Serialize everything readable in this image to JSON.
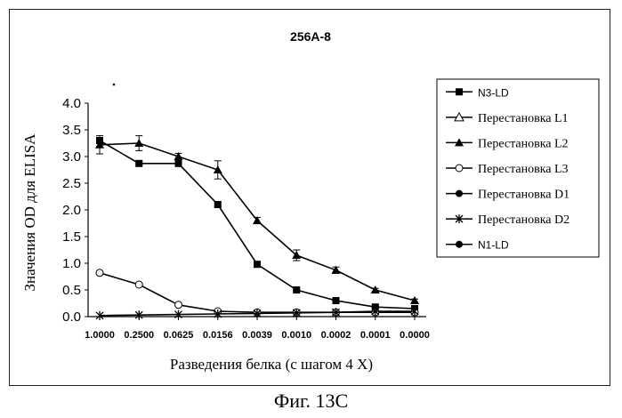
{
  "chart_data": {
    "type": "line",
    "title": "256A-8",
    "xlabel": "Разведения белка (с шагом 4 X)",
    "ylabel": "Значения OD для ELISA",
    "categories": [
      "1.0000",
      "0.2500",
      "0.0625",
      "0.0156",
      "0.0039",
      "0.0010",
      "0.0002",
      "0.0001",
      "0.0000"
    ],
    "yticks": [
      "0.0",
      "0.5",
      "1.0",
      "1.5",
      "2.0",
      "2.5",
      "3.0",
      "3.5",
      "4.0"
    ],
    "ylim": [
      0,
      4
    ],
    "grid": false,
    "legend_position": "right",
    "series": [
      {
        "name": "N3-LD",
        "marker": "filled-square",
        "values": [
          3.3,
          2.87,
          2.87,
          2.1,
          0.98,
          0.5,
          0.3,
          0.18,
          0.15
        ],
        "errors": [
          0.05,
          0.03,
          0.05,
          0.05,
          0.04,
          0.03,
          0.02,
          0.02,
          0.02
        ]
      },
      {
        "name": "Перестановка L1",
        "marker": "open-triangle",
        "values": [
          null,
          null,
          null,
          null,
          null,
          null,
          null,
          null,
          null
        ]
      },
      {
        "name": "Перестановка L2",
        "marker": "filled-triangle",
        "values": [
          3.22,
          3.25,
          3.0,
          2.75,
          1.8,
          1.15,
          0.87,
          0.5,
          0.3
        ],
        "errors": [
          0.17,
          0.14,
          0.06,
          0.17,
          0.06,
          0.1,
          0.06,
          0.03,
          0.03
        ]
      },
      {
        "name": "Перестановка L3",
        "marker": "open-circle",
        "values": [
          0.82,
          0.6,
          0.22,
          0.1,
          0.08,
          0.08,
          0.08,
          0.08,
          0.08
        ]
      },
      {
        "name": "Перестановка D1",
        "marker": "filled-circle",
        "values": [
          null,
          null,
          null,
          null,
          null,
          null,
          null,
          null,
          null
        ]
      },
      {
        "name": "Перестановка D2",
        "marker": "star",
        "values": [
          0.02,
          0.03,
          0.04,
          0.05,
          0.06,
          0.07,
          0.08,
          0.1,
          0.1
        ]
      },
      {
        "name": "N1-LD",
        "marker": "filled-circle",
        "values": [
          null,
          null,
          null,
          null,
          null,
          null,
          null,
          null,
          null
        ]
      }
    ]
  },
  "caption": "Фиг. 13C"
}
